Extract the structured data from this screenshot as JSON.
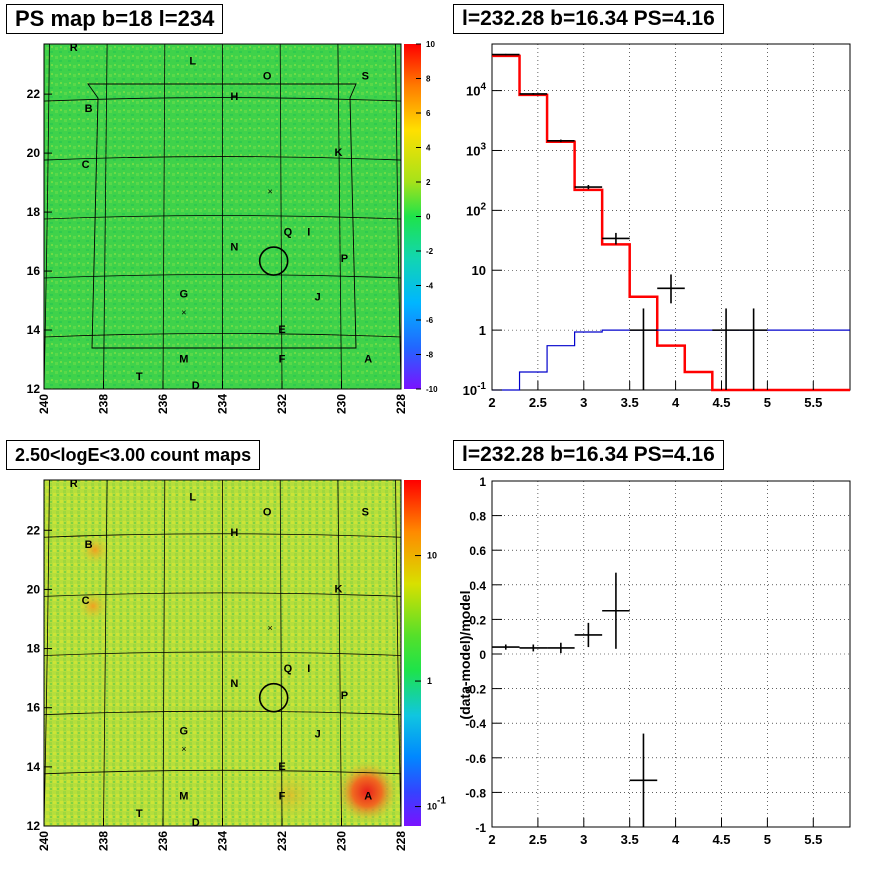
{
  "panels": {
    "ps_map": {
      "title": "PS map b=18 l=234",
      "x_ticks": [
        "240",
        "238",
        "236",
        "234",
        "232",
        "230",
        "228"
      ],
      "y_ticks": [
        "12",
        "14",
        "16",
        "18",
        "20",
        "22"
      ],
      "colorbar_ticks": [
        "10",
        "8",
        "6",
        "4",
        "2",
        "0",
        "-2",
        "-4",
        "-6",
        "-8",
        "-10"
      ],
      "colors": {
        "background": "#3fd24a",
        "speckle": "#7de04a"
      }
    },
    "spectrum": {
      "title": "l=232.28 b=16.34 PS=4.16",
      "x_ticks": [
        "2",
        "2.5",
        "3",
        "3.5",
        "4",
        "4.5",
        "5",
        "5.5"
      ],
      "y_ticks": [
        "10^-1",
        "1",
        "10",
        "10^2",
        "10^3",
        "10^4"
      ],
      "y_tick_base": "10"
    },
    "count_map": {
      "title": "2.50<logE<3.00 count maps",
      "x_ticks": [
        "240",
        "238",
        "236",
        "234",
        "232",
        "230",
        "228"
      ],
      "y_ticks": [
        "12",
        "14",
        "16",
        "18",
        "20",
        "22"
      ],
      "colorbar_ticks": [
        "10",
        "1",
        "10^-1"
      ],
      "colors": {
        "background": "#b8e03a",
        "hotspot": "#e83a1e"
      }
    },
    "residual": {
      "title": "l=232.28 b=16.34 PS=4.16",
      "ylabel": "(data-model)/model",
      "x_ticks": [
        "2",
        "2.5",
        "3",
        "3.5",
        "4",
        "4.5",
        "5",
        "5.5"
      ],
      "y_ticks": [
        "1",
        "0.8",
        "0.6",
        "0.4",
        "0.2",
        "0",
        "-0.2",
        "-0.4",
        "-0.6",
        "-0.8",
        "-1"
      ]
    }
  },
  "source_labels": [
    "R",
    "L",
    "O",
    "S",
    "H",
    "B",
    "K",
    "C",
    "Q",
    "I",
    "N",
    "P",
    "G",
    "J",
    "E",
    "M",
    "F",
    "A",
    "T",
    "D"
  ],
  "chart_data": [
    {
      "type": "heatmap",
      "title": "PS map b=18 l=234",
      "xlim": [
        240,
        228
      ],
      "ylim": [
        12,
        23.7
      ],
      "zlim": [
        -10,
        10
      ],
      "sources": [
        {
          "name": "R",
          "l": 239.0,
          "b": 23.8
        },
        {
          "name": "L",
          "l": 235.0,
          "b": 23.0
        },
        {
          "name": "O",
          "l": 232.5,
          "b": 22.5
        },
        {
          "name": "S",
          "l": 229.2,
          "b": 22.5
        },
        {
          "name": "H",
          "l": 233.6,
          "b": 21.8
        },
        {
          "name": "B",
          "l": 238.5,
          "b": 21.4
        },
        {
          "name": "K",
          "l": 230.1,
          "b": 19.9
        },
        {
          "name": "C",
          "l": 238.6,
          "b": 19.5
        },
        {
          "name": "Q",
          "l": 231.8,
          "b": 17.2
        },
        {
          "name": "I",
          "l": 231.1,
          "b": 17.2
        },
        {
          "name": "N",
          "l": 233.6,
          "b": 16.7
        },
        {
          "name": "P",
          "l": 229.9,
          "b": 16.3
        },
        {
          "name": "G",
          "l": 235.3,
          "b": 15.1
        },
        {
          "name": "J",
          "l": 230.8,
          "b": 15.0
        },
        {
          "name": "E",
          "l": 232.0,
          "b": 13.9
        },
        {
          "name": "M",
          "l": 235.3,
          "b": 12.9
        },
        {
          "name": "F",
          "l": 232.0,
          "b": 12.9
        },
        {
          "name": "A",
          "l": 229.1,
          "b": 12.9
        },
        {
          "name": "T",
          "l": 236.8,
          "b": 12.3
        },
        {
          "name": "D",
          "l": 234.9,
          "b": 12.0
        }
      ],
      "marker_circle": {
        "l": 232.28,
        "b": 16.34
      }
    },
    {
      "type": "line",
      "title": "l=232.28 b=16.34 PS=4.16",
      "xlim": [
        2,
        5.9
      ],
      "ylim": [
        0.1,
        60000
      ],
      "log_y": true,
      "grid": true,
      "series": [
        {
          "color": "#ff0000",
          "bin_edges": [
            2.0,
            2.3,
            2.6,
            2.9,
            3.2,
            3.5,
            3.8,
            4.1,
            4.4,
            4.7,
            5.0,
            5.3,
            5.6,
            5.9
          ],
          "values": [
            38000,
            8500,
            1400,
            220,
            27,
            3.6,
            0.55,
            0.2,
            0.1,
            0.1,
            0.1,
            0.1,
            0.1
          ]
        },
        {
          "color": "#0000cc",
          "bin_edges": [
            2.0,
            2.3,
            2.6,
            2.9,
            3.2,
            3.5,
            3.8,
            4.1,
            4.4,
            4.7,
            5.0,
            5.3,
            5.6,
            5.9
          ],
          "values": [
            0.05,
            0.2,
            0.55,
            0.93,
            1.0,
            1.0,
            1.0,
            1.0,
            1.0,
            1.0,
            1.0,
            1.0,
            1.0
          ]
        },
        {
          "color": "#000000",
          "points": [
            {
              "x": 2.15,
              "y": 40000,
              "xerr": 0.15,
              "ylo": 39000,
              "yhi": 41000
            },
            {
              "x": 2.45,
              "y": 8800,
              "xerr": 0.15,
              "ylo": 8500,
              "yhi": 9100
            },
            {
              "x": 2.75,
              "y": 1450,
              "xerr": 0.15,
              "ylo": 1380,
              "yhi": 1520
            },
            {
              "x": 3.05,
              "y": 245,
              "xerr": 0.15,
              "ylo": 225,
              "yhi": 265
            },
            {
              "x": 3.35,
              "y": 34,
              "xerr": 0.15,
              "ylo": 27,
              "yhi": 42
            },
            {
              "x": 3.95,
              "y": 5,
              "xerr": 0.15,
              "ylo": 2.8,
              "yhi": 8.5
            },
            {
              "x": 3.65,
              "y": 1,
              "xerr": 0.15,
              "ylo": 0.1,
              "yhi": 2.3
            },
            {
              "x": 4.55,
              "y": 1,
              "xerr": 0.15,
              "ylo": 0.1,
              "yhi": 2.3
            },
            {
              "x": 4.85,
              "y": 1,
              "xerr": 0.15,
              "ylo": 0.1,
              "yhi": 2.3
            }
          ]
        }
      ]
    },
    {
      "type": "heatmap",
      "title": "2.50<logE<3.00 count maps",
      "xlim": [
        240,
        228
      ],
      "ylim": [
        12,
        23.7
      ],
      "zlim": [
        0.07,
        40
      ],
      "log_z": true,
      "hotspots": [
        {
          "name": "A",
          "l": 229.1,
          "b": 13.2
        },
        {
          "name": "B",
          "l": 238.5,
          "b": 21.4
        },
        {
          "name": "C",
          "l": 238.6,
          "b": 19.5
        }
      ],
      "marker_circle": {
        "l": 232.28,
        "b": 16.34
      }
    },
    {
      "type": "scatter",
      "title": "l=232.28 b=16.34 PS=4.16",
      "ylabel": "(data-model)/model",
      "xlim": [
        2,
        5.9
      ],
      "ylim": [
        -1,
        1
      ],
      "grid": true,
      "points": [
        {
          "x": 2.15,
          "y": 0.04,
          "xerr": 0.15,
          "yerr": 0.015
        },
        {
          "x": 2.45,
          "y": 0.035,
          "xerr": 0.15,
          "yerr": 0.02
        },
        {
          "x": 2.75,
          "y": 0.035,
          "xerr": 0.15,
          "yerr": 0.03
        },
        {
          "x": 3.05,
          "y": 0.11,
          "xerr": 0.15,
          "yerr": 0.07
        },
        {
          "x": 3.35,
          "y": 0.25,
          "xerr": 0.15,
          "yerr": 0.22
        },
        {
          "x": 3.65,
          "y": -0.73,
          "xerr": 0.15,
          "yerr": 0.27
        }
      ]
    }
  ]
}
